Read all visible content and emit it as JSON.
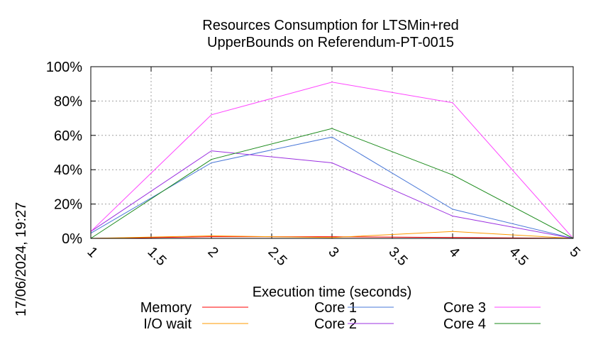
{
  "chart_data": {
    "type": "line",
    "title_line1": "Resources Consumption for LTSMin+red",
    "title_line2": "UpperBounds on Referendum-PT-0015",
    "xlabel": "Execution time (seconds)",
    "ylabel": "",
    "xlim": [
      1,
      5
    ],
    "ylim": [
      0,
      100
    ],
    "x_ticks": [
      "1",
      "1.5",
      "2",
      "2.5",
      "3",
      "3.5",
      "4",
      "4.5",
      "5"
    ],
    "y_ticks": [
      "0%",
      "20%",
      "40%",
      "60%",
      "80%",
      "100%"
    ],
    "grid": true,
    "legend_position": "bottom",
    "timestamp": "17/06/2024, 19:27",
    "x": [
      1,
      2,
      3,
      4,
      5
    ],
    "series": [
      {
        "name": "Memory",
        "color": "#ff0000",
        "values": [
          0,
          1,
          1,
          0.5,
          0
        ]
      },
      {
        "name": "I/O wait",
        "color": "#ff9900",
        "values": [
          0,
          1.5,
          0.5,
          4,
          0
        ]
      },
      {
        "name": "Core 1",
        "color": "#4a78d8",
        "values": [
          3,
          44,
          59,
          17,
          0
        ]
      },
      {
        "name": "Core 2",
        "color": "#9b30e0",
        "values": [
          4,
          51,
          44,
          13,
          0
        ]
      },
      {
        "name": "Core 3",
        "color": "#ff44ff",
        "values": [
          4,
          72,
          91,
          79,
          0
        ]
      },
      {
        "name": "Core 4",
        "color": "#1a8a1a",
        "values": [
          0,
          46,
          64,
          37,
          0
        ]
      }
    ]
  }
}
